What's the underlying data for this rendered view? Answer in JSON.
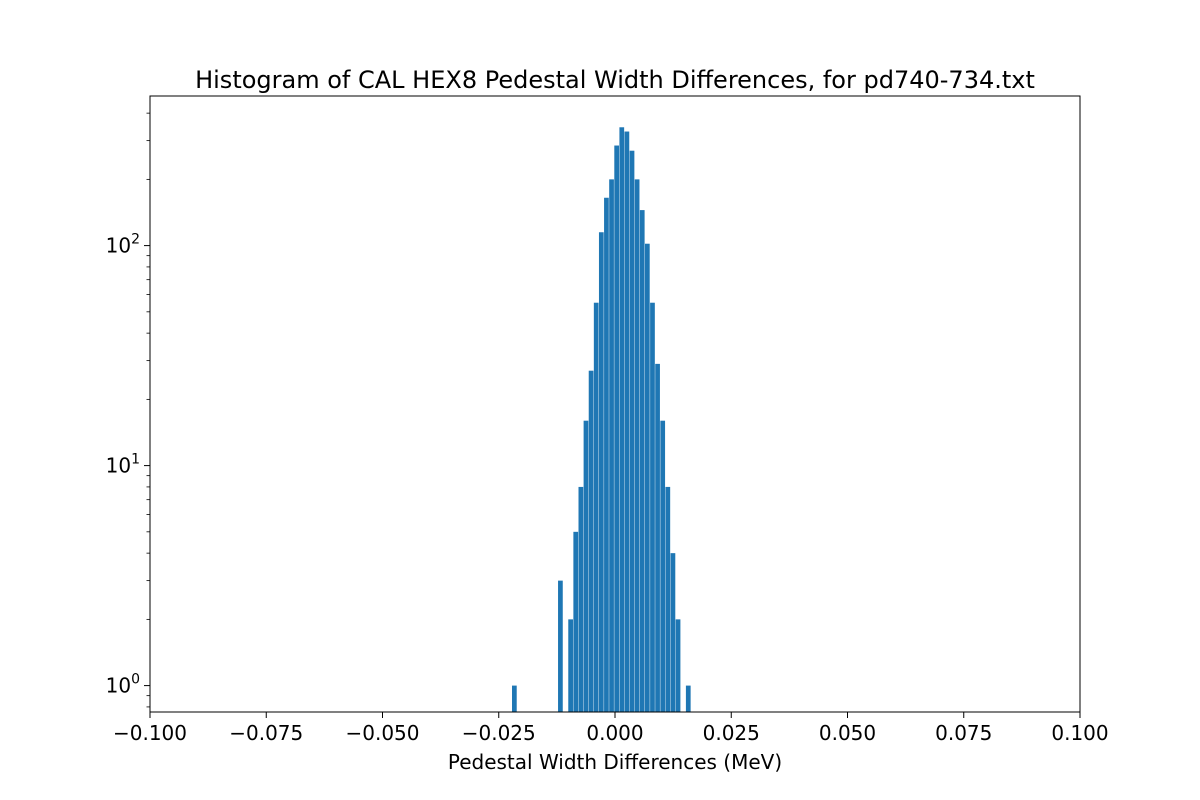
{
  "chart_data": {
    "type": "bar",
    "title": "Histogram of CAL HEX8 Pedestal Width Differences, for pd740-734.txt",
    "xlabel": "Pedestal Width Differences (MeV)",
    "ylabel": "",
    "xlim": [
      -0.1,
      0.1
    ],
    "ylim_log10": [
      -0.12,
      2.68
    ],
    "yscale": "log",
    "grid": false,
    "color": "#1f77b4",
    "bin_width": 0.0011,
    "x_ticks": [
      {
        "value": -0.1,
        "label": "−0.100"
      },
      {
        "value": -0.075,
        "label": "−0.075"
      },
      {
        "value": -0.05,
        "label": "−0.050"
      },
      {
        "value": -0.025,
        "label": "−0.025"
      },
      {
        "value": 0.0,
        "label": "0.000"
      },
      {
        "value": 0.025,
        "label": "0.025"
      },
      {
        "value": 0.05,
        "label": "0.050"
      },
      {
        "value": 0.075,
        "label": "0.075"
      },
      {
        "value": 0.1,
        "label": "0.100"
      }
    ],
    "y_ticks": [
      {
        "value": 1,
        "base": "10",
        "exp": "0"
      },
      {
        "value": 10,
        "base": "10",
        "exp": "1"
      },
      {
        "value": 100,
        "base": "10",
        "exp": "2"
      }
    ],
    "bins": [
      {
        "x": -0.0216,
        "count": 1
      },
      {
        "x": -0.0117,
        "count": 3
      },
      {
        "x": -0.0095,
        "count": 2
      },
      {
        "x": -0.0084,
        "count": 5
      },
      {
        "x": -0.0073,
        "count": 8
      },
      {
        "x": -0.0062,
        "count": 16
      },
      {
        "x": -0.0051,
        "count": 27
      },
      {
        "x": -0.004,
        "count": 55
      },
      {
        "x": -0.0029,
        "count": 115
      },
      {
        "x": -0.0018,
        "count": 165
      },
      {
        "x": -0.0007,
        "count": 200
      },
      {
        "x": 0.0004,
        "count": 285
      },
      {
        "x": 0.0015,
        "count": 345
      },
      {
        "x": 0.0026,
        "count": 330
      },
      {
        "x": 0.0037,
        "count": 270
      },
      {
        "x": 0.0048,
        "count": 200
      },
      {
        "x": 0.0059,
        "count": 145
      },
      {
        "x": 0.007,
        "count": 102
      },
      {
        "x": 0.0081,
        "count": 55
      },
      {
        "x": 0.0092,
        "count": 29
      },
      {
        "x": 0.0103,
        "count": 16
      },
      {
        "x": 0.0114,
        "count": 8
      },
      {
        "x": 0.0125,
        "count": 4
      },
      {
        "x": 0.0136,
        "count": 2
      },
      {
        "x": 0.0158,
        "count": 1
      }
    ]
  }
}
